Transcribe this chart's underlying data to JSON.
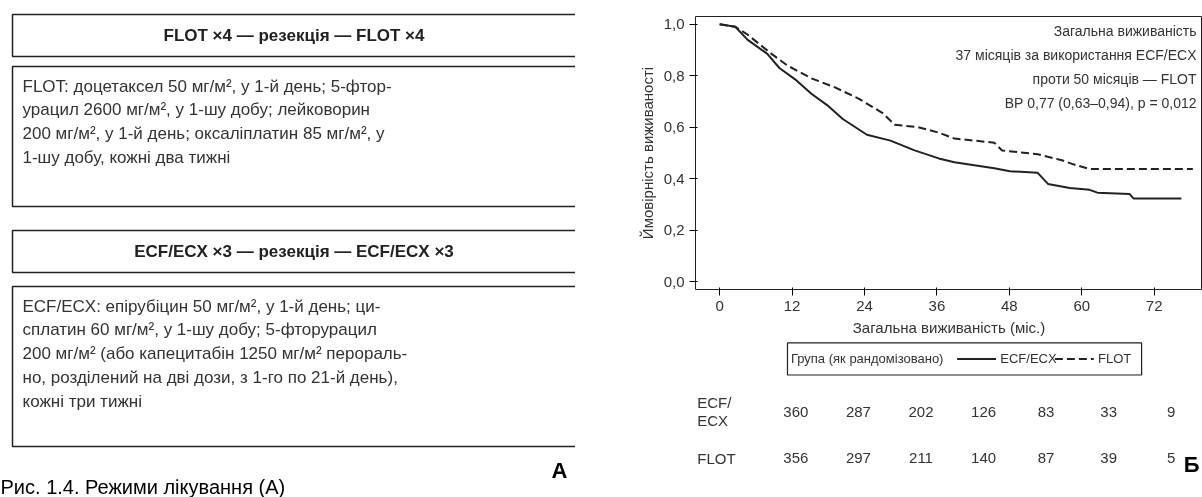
{
  "chart_data": [
    {
      "type": "other",
      "annotations": [
        "FLOT ×4 — резекція — FLOT ×4",
        "FLOT: доцетаксел 50 мг/м², у 1-й день; 5-фтор-\nурацил 2600 мг/м², у 1-шу добу; лейковорин\n200 мг/м², у 1-й день; оксаліплатин 85 мг/м², у\n1-шу добу, кожні два тижні",
        "ECF/ECX ×3 — резекція — ECF/ECX ×3",
        "ECF/ECX: епірубіцин 50 мг/м², у 1-й день; ци-\nсплатин 60 мг/м², у 1-шу добу; 5-фторурацил\n200 мг/м² (або капецитабін 1250 мг/м² перораль-\nно, розділений на дві дози, з 1-го по 21-й день),\nкожні три тижні",
        "А",
        "Рис. 1.4. Режими лікування (А)"
      ]
    },
    {
      "type": "line",
      "xlabel": "Загальна виживаність (міс.)",
      "ylabel": "Ймовірність виживаності",
      "xlim": [
        -4,
        80
      ],
      "ylim": [
        -0.03,
        1.03
      ],
      "xticks": [
        0,
        12,
        24,
        36,
        48,
        60,
        72
      ],
      "yticks": [
        {
          "value": 0,
          "label": "0,0"
        },
        {
          "value": 0.2,
          "label": "0,2"
        },
        {
          "value": 0.4,
          "label": "0,4"
        },
        {
          "value": 0.6,
          "label": "0,6"
        },
        {
          "value": 0.8,
          "label": "0,8"
        },
        {
          "value": 1,
          "label": "1,0"
        }
      ],
      "legend": "bottom",
      "legend_title": "Група (як рандомізовано)",
      "series": [
        {
          "name": "ECF/ECX",
          "color": "#222222",
          "line_style": "solid",
          "x": [
            0,
            2.6,
            4.6,
            7.9,
            9.9,
            12.5,
            15.2,
            17.8,
            20.4,
            24.4,
            28.3,
            32.3,
            36.3,
            38.9,
            45.5,
            48.1,
            52.7,
            54.4,
            58,
            61.3,
            62.6,
            67.9,
            68.6,
            76.5
          ],
          "values": [
            1.0,
            0.99,
            0.94,
            0.885,
            0.83,
            0.786,
            0.73,
            0.686,
            0.632,
            0.571,
            0.548,
            0.51,
            0.479,
            0.464,
            0.441,
            0.429,
            0.423,
            0.38,
            0.364,
            0.357,
            0.346,
            0.341,
            0.323,
            0.323
          ]
        },
        {
          "name": "FLOT",
          "color": "#222222",
          "line_style": "dashed",
          "x": [
            0,
            2.6,
            4.6,
            8.6,
            11.2,
            15.2,
            19.1,
            23.1,
            27,
            29,
            32.9,
            36.3,
            38.9,
            45.5,
            46.8,
            52.7,
            56.7,
            58.6,
            61.3,
            67.9,
            78.4
          ],
          "values": [
            1.0,
            0.99,
            0.96,
            0.885,
            0.84,
            0.79,
            0.755,
            0.71,
            0.655,
            0.61,
            0.6,
            0.579,
            0.556,
            0.54,
            0.51,
            0.495,
            0.472,
            0.456,
            0.438,
            0.438,
            0.438
          ]
        }
      ],
      "annotations": [
        "Загальна виживаність\n37 місяців за використання ECF/ECX\nпроти 50 місяців — FLOT\nВР 0,77 (0,63–0,94), p = 0,012",
        "ECF/\nECX",
        "360",
        "287",
        "202",
        "126",
        "83",
        "33",
        "9",
        "FLOT",
        "356",
        "297",
        "211",
        "140",
        "87",
        "39",
        "5",
        "Б"
      ]
    }
  ]
}
